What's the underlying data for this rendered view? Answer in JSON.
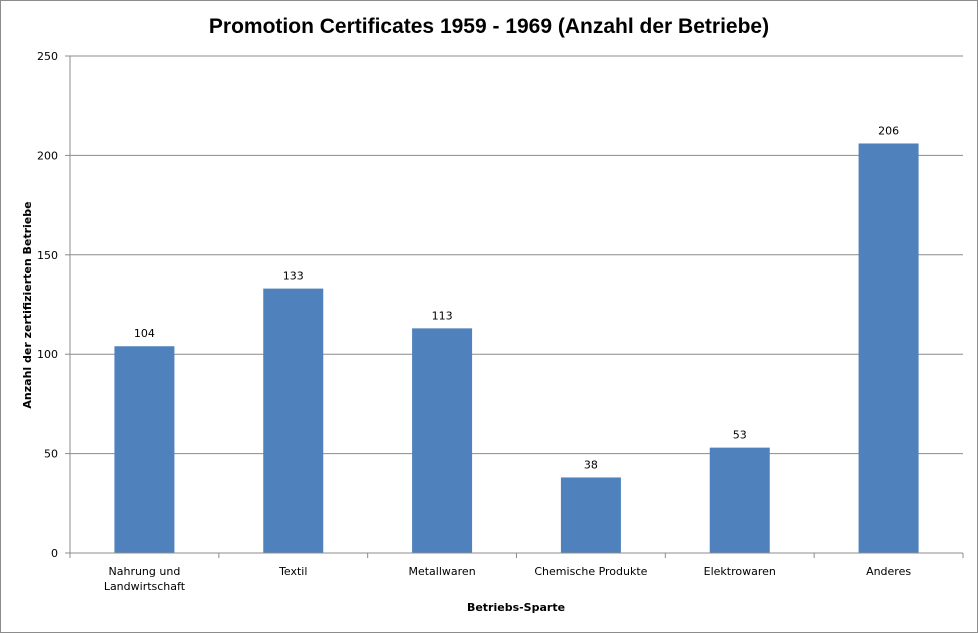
{
  "chart_data": {
    "type": "bar",
    "title": "Promotion Certificates 1959 - 1969 (Anzahl der Betriebe)",
    "xlabel": "Betriebs-Sparte",
    "ylabel": "Anzahl der zertifizierten Betriebe",
    "categories": [
      [
        "Nahrung und",
        "Landwirtschaft"
      ],
      [
        "Textil"
      ],
      [
        "Metallwaren"
      ],
      [
        "Chemische Produkte"
      ],
      [
        "Elektrowaren"
      ],
      [
        "Anderes"
      ]
    ],
    "values": [
      104,
      133,
      113,
      38,
      53,
      206
    ],
    "data_labels": [
      "104",
      "133",
      "113",
      "38",
      "53",
      "206"
    ],
    "ylim": [
      0,
      250
    ],
    "yticks": [
      0,
      50,
      100,
      150,
      200,
      250
    ],
    "grid": true,
    "legend": "none",
    "colors": {
      "bar": "#4f81bd",
      "grid": "#8c8c8c",
      "axis": "#8c8c8c"
    }
  }
}
